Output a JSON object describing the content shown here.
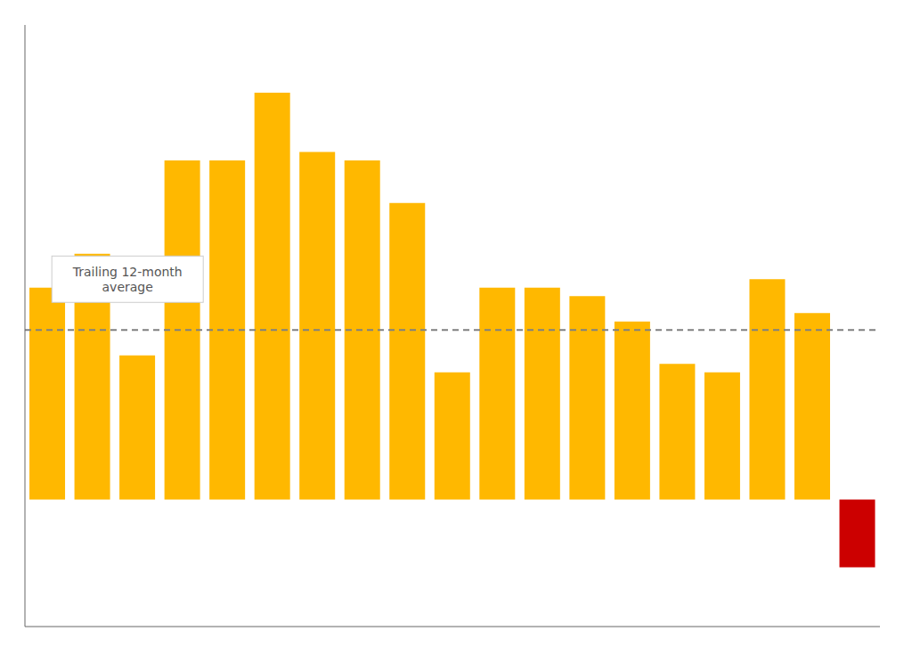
{
  "chart_data": {
    "type": "bar",
    "categories": [
      null,
      null,
      null,
      null,
      null,
      null,
      null,
      null,
      null,
      null,
      null,
      null,
      null,
      null,
      null,
      null,
      null,
      null,
      null
    ],
    "values": [
      250,
      290,
      170,
      400,
      400,
      480,
      410,
      400,
      350,
      150,
      250,
      250,
      240,
      210,
      160,
      150,
      260,
      220,
      -80
    ],
    "colors": [
      "#FFB800",
      "#FFB800",
      "#FFB800",
      "#FFB800",
      "#FFB800",
      "#FFB800",
      "#FFB800",
      "#FFB800",
      "#FFB800",
      "#FFB800",
      "#FFB800",
      "#FFB800",
      "#FFB800",
      "#FFB800",
      "#FFB800",
      "#FFB800",
      "#FFB800",
      "#FFB800",
      "#CC0000"
    ],
    "ylim": [
      -150,
      560
    ],
    "yticks": [],
    "tick_labels": false,
    "grid": false,
    "average_line": {
      "value": 200,
      "color": "#808080",
      "line_style": "dashed"
    },
    "annotations": [
      {
        "text": "Trailing 12-month\naverage",
        "color": "#555555"
      }
    ]
  }
}
